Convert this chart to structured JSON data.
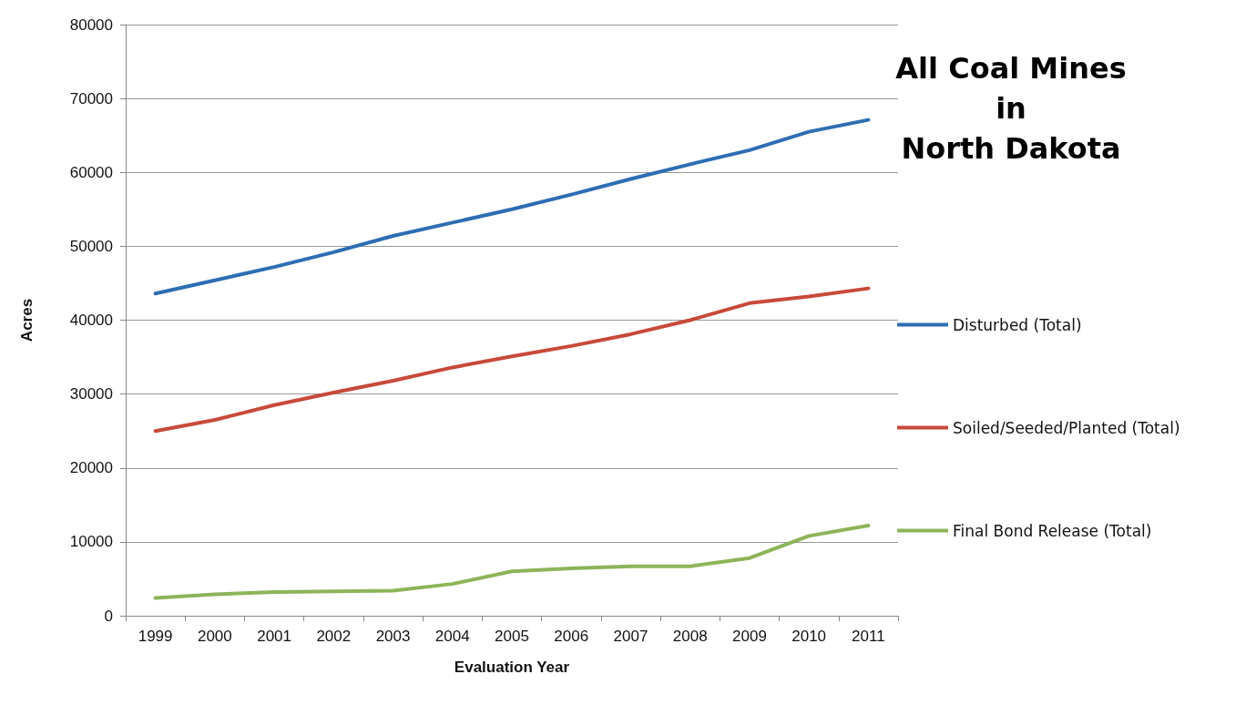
{
  "chart_data": {
    "type": "line",
    "title": "All Coal Mines\nin\nNorth Dakota",
    "xlabel": "Evaluation Year",
    "ylabel": "Acres",
    "categories": [
      "1999",
      "2000",
      "2001",
      "2002",
      "2003",
      "2004",
      "2005",
      "2006",
      "2007",
      "2008",
      "2009",
      "2010",
      "2011"
    ],
    "series": [
      {
        "name": "Disturbed (Total)",
        "color": "#2e6db4",
        "values": [
          43600,
          45400,
          47200,
          49200,
          51400,
          53200,
          55000,
          57000,
          59100,
          61100,
          63000,
          65500,
          67100
        ]
      },
      {
        "name": "Soiled/Seeded/Planted (Total)",
        "color": "#c8493a",
        "values": [
          25000,
          26500,
          28500,
          30200,
          31800,
          33600,
          35100,
          36500,
          38100,
          40000,
          42300,
          43200,
          44300
        ]
      },
      {
        "name": "Final Bond Release (Total)",
        "color": "#8db45a",
        "values": [
          2400,
          2900,
          3200,
          3300,
          3400,
          4300,
          6000,
          6400,
          6700,
          6700,
          7800,
          10800,
          12200
        ]
      }
    ],
    "ylim": [
      0,
      80000
    ],
    "yticks": [
      0,
      10000,
      20000,
      30000,
      40000,
      50000,
      60000,
      70000,
      80000
    ],
    "grid": "y",
    "legend": "right",
    "marker": "none",
    "line_style": "solid"
  }
}
